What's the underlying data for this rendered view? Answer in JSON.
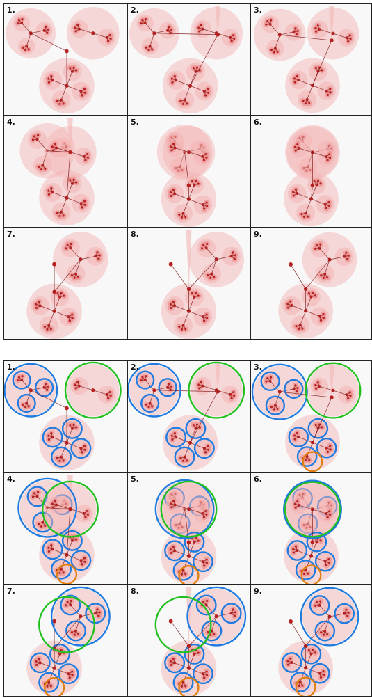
{
  "figures": [
    {
      "id": "top",
      "panels": [
        {
          "label": "1."
        },
        {
          "label": "2."
        },
        {
          "label": "3."
        },
        {
          "label": "4."
        },
        {
          "label": "5."
        },
        {
          "label": "6."
        },
        {
          "label": "7."
        },
        {
          "label": "8."
        },
        {
          "label": "9."
        }
      ]
    },
    {
      "id": "bottom",
      "panels": [
        {
          "label": "1."
        },
        {
          "label": "2."
        },
        {
          "label": "3."
        },
        {
          "label": "4."
        },
        {
          "label": "5."
        },
        {
          "label": "6."
        },
        {
          "label": "7."
        },
        {
          "label": "8."
        },
        {
          "label": "9."
        }
      ]
    }
  ],
  "colors": {
    "cell_background": "#f8f8f8",
    "bubble_fill": "#f4b6b6",
    "bubble_dark": "#e98b8b",
    "node": "#b52020",
    "edge": "#7a1414",
    "highlight_blue": "#1f7be0",
    "highlight_green": "#22c01e",
    "highlight_orange": "#e07f10"
  }
}
